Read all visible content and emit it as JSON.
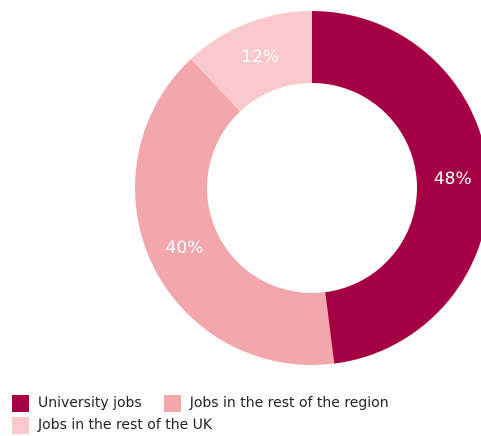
{
  "chart_data": {
    "type": "pie",
    "variant": "donut",
    "categories": [
      "University jobs",
      "Jobs in the rest of the region",
      "Jobs in the rest of the UK"
    ],
    "values": [
      48,
      40,
      12
    ],
    "value_labels": [
      "48%",
      "40%",
      "12%"
    ],
    "colors": [
      "#a50044",
      "#f4a6ad",
      "#f9c9cc"
    ],
    "legend_position": "bottom-left"
  },
  "legend": {
    "items": [
      {
        "label": "University jobs",
        "color": "#a50044"
      },
      {
        "label": "Jobs in the rest of the region",
        "color": "#f4a6ad"
      },
      {
        "label": "Jobs in the rest of the UK",
        "color": "#f9c9cc"
      }
    ]
  }
}
